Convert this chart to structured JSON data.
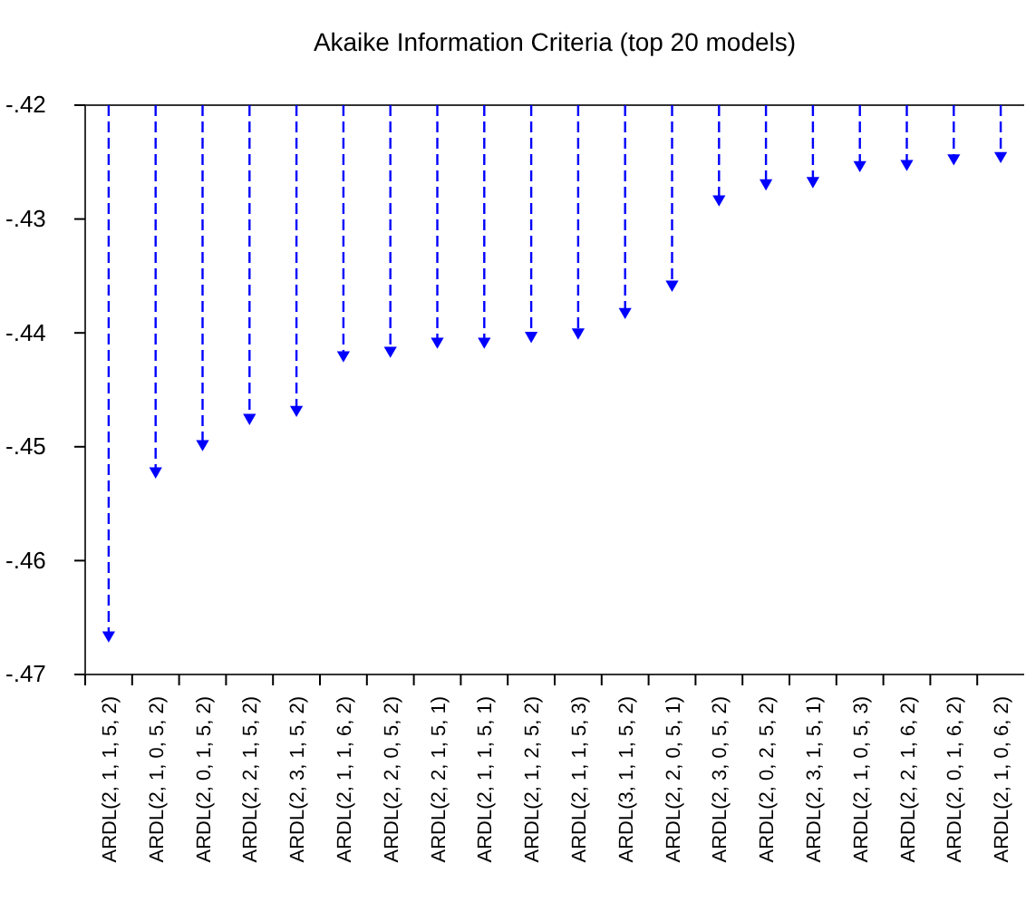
{
  "chart_data": {
    "type": "lollipop",
    "title": "Akaike Information Criteria (top 20 models)",
    "categories": [
      "ARDL(2, 1, 1, 5, 2)",
      "ARDL(2, 1, 0, 5, 2)",
      "ARDL(2, 0, 1, 5, 2)",
      "ARDL(2, 2, 1, 5, 2)",
      "ARDL(2, 3, 1, 5, 2)",
      "ARDL(2, 1, 1, 6, 2)",
      "ARDL(2, 2, 0, 5, 2)",
      "ARDL(2, 2, 1, 5, 1)",
      "ARDL(2, 1, 1, 5, 1)",
      "ARDL(2, 1, 2, 5, 2)",
      "ARDL(2, 1, 1, 5, 3)",
      "ARDL(3, 1, 1, 5, 2)",
      "ARDL(2, 2, 0, 5, 1)",
      "ARDL(2, 3, 0, 5, 2)",
      "ARDL(2, 0, 2, 5, 2)",
      "ARDL(2, 3, 1, 5, 1)",
      "ARDL(2, 1, 0, 5, 3)",
      "ARDL(2, 2, 1, 6, 2)",
      "ARDL(2, 0, 1, 6, 2)",
      "ARDL(2, 1, 0, 6, 2)"
    ],
    "values": [
      -0.4667,
      -0.4523,
      -0.4499,
      -0.4476,
      -0.4469,
      -0.4421,
      -0.4417,
      -0.4409,
      -0.4409,
      -0.4404,
      -0.4401,
      -0.4383,
      -0.4359,
      -0.4284,
      -0.427,
      -0.4268,
      -0.4254,
      -0.4253,
      -0.4248,
      -0.4246
    ],
    "color": "#0000ff",
    "ylim": [
      -0.47,
      -0.42
    ],
    "yticks": [
      {
        "value": -0.42,
        "label": "-.42"
      },
      {
        "value": -0.43,
        "label": "-.43"
      },
      {
        "value": -0.44,
        "label": "-.44"
      },
      {
        "value": -0.45,
        "label": "-.45"
      },
      {
        "value": -0.46,
        "label": "-.46"
      },
      {
        "value": -0.47,
        "label": "-.47"
      }
    ],
    "line_style": "dashed",
    "marker": "triangle"
  }
}
